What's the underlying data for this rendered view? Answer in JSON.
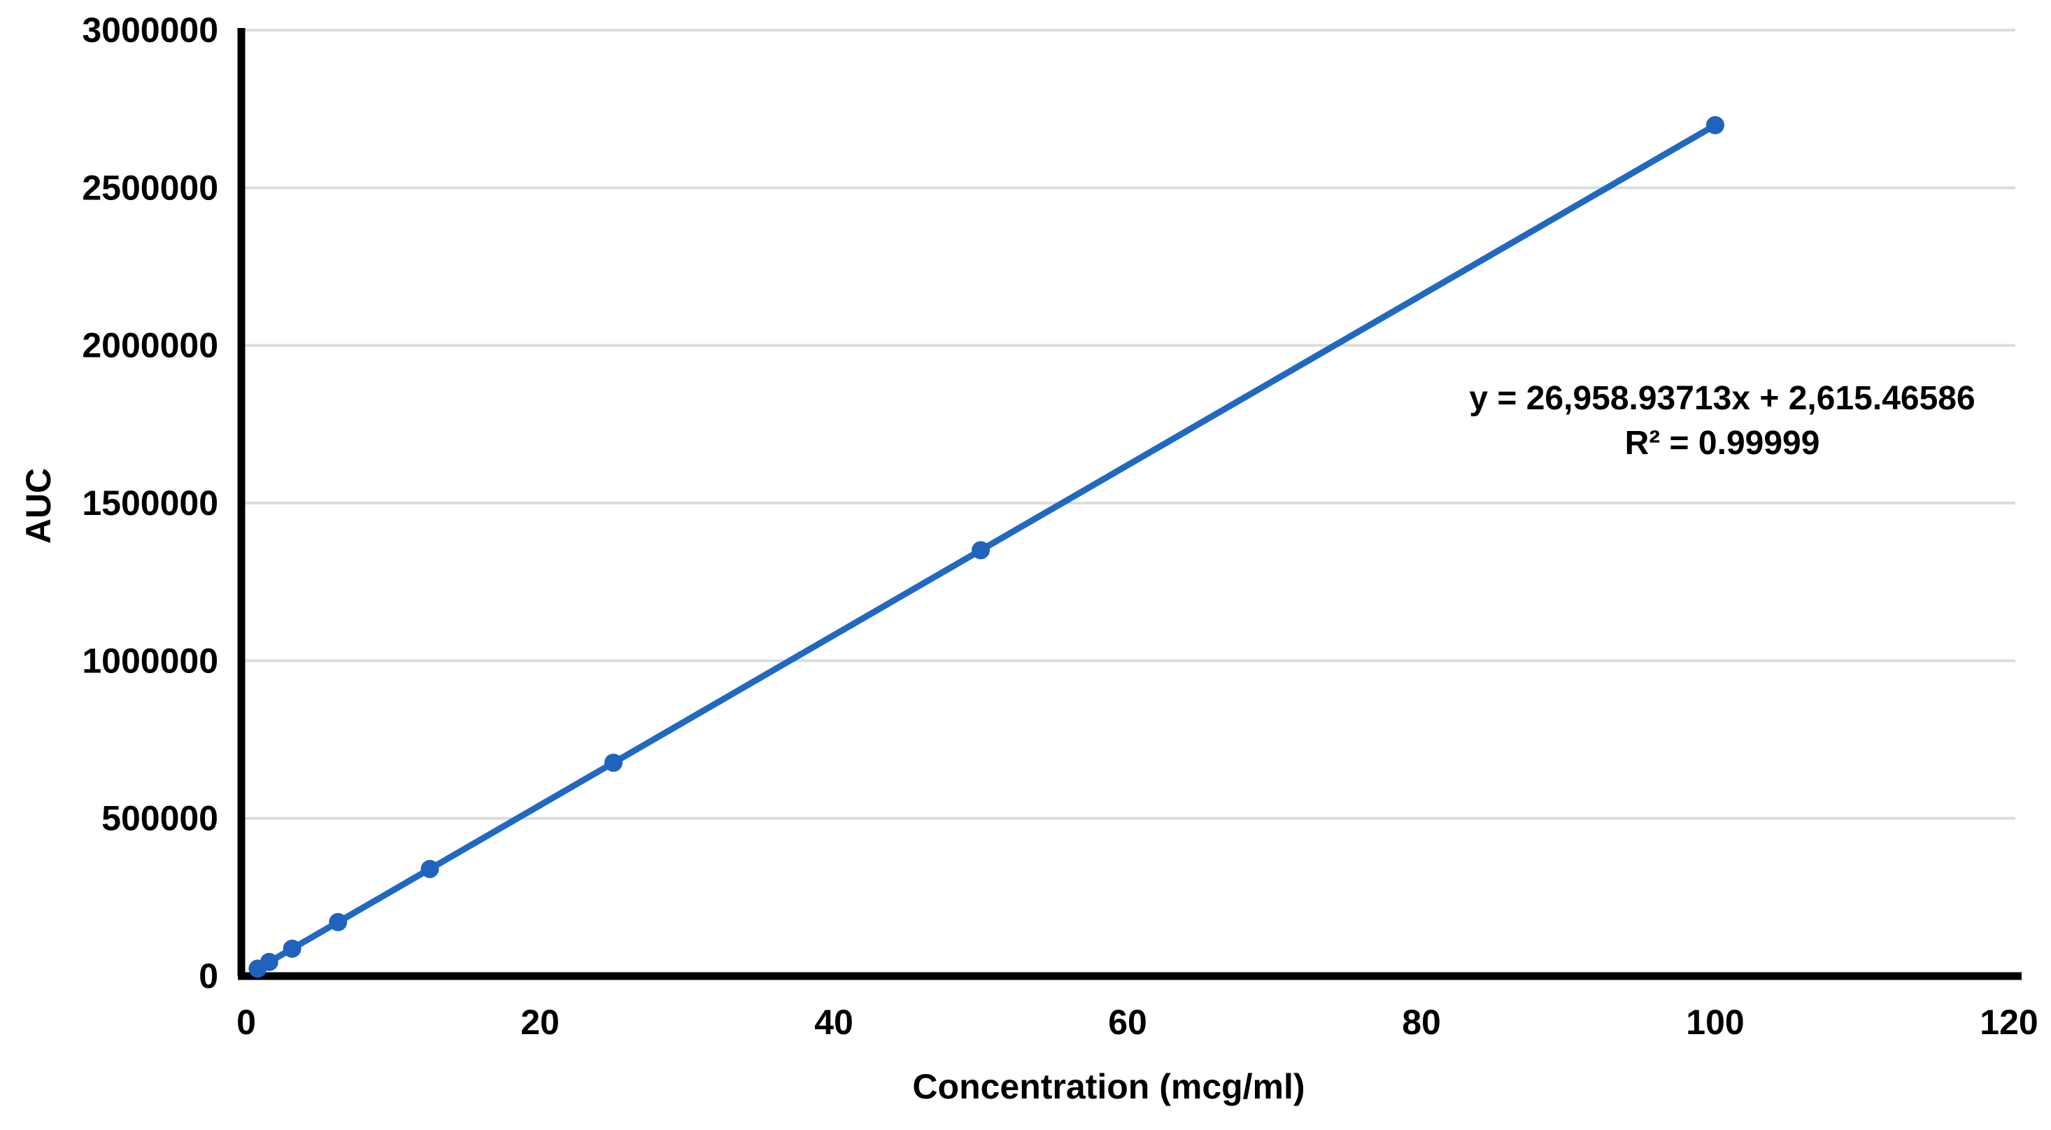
{
  "chart_data": {
    "type": "scatter",
    "title": "",
    "xlabel": "Concentration (mcg/ml)",
    "ylabel": "AUC",
    "x": [
      0.78125,
      1.5625,
      3.125,
      6.25,
      12.5,
      25,
      50,
      100
    ],
    "y": [
      23677,
      44739,
      86862,
      171109,
      339602,
      676589,
      1350562,
      2698509
    ],
    "line_between_points": true,
    "marker": "circle",
    "trendline": {
      "equation_label": "y = 26,958.93713x + 2,615.46586",
      "r_squared_label": "R² = 0.99999",
      "slope": 26958.93713,
      "intercept": 2615.46586,
      "r_squared": 0.99999
    },
    "x_axis": {
      "min": 0,
      "max": 120,
      "tick_step": 20,
      "ticks": [
        0,
        20,
        40,
        60,
        80,
        100,
        120
      ],
      "tick_labels": [
        "0",
        "20",
        "40",
        "60",
        "80",
        "100",
        "120"
      ]
    },
    "y_axis": {
      "min": 0,
      "max": 3000000,
      "tick_step": 500000,
      "ticks": [
        0,
        500000,
        1000000,
        1500000,
        2000000,
        2500000,
        3000000
      ],
      "tick_labels": [
        "0",
        "500000",
        "1000000",
        "1500000",
        "2000000",
        "2500000",
        "3000000"
      ]
    },
    "grid": "horizontal",
    "legend": "none",
    "colors": {
      "series_line": "#2169c0",
      "series_marker": "#1f63bd",
      "gridline": "#dcdcdc",
      "axis_line": "#000000",
      "label_text": "#000000",
      "background": "#ffffff"
    }
  }
}
